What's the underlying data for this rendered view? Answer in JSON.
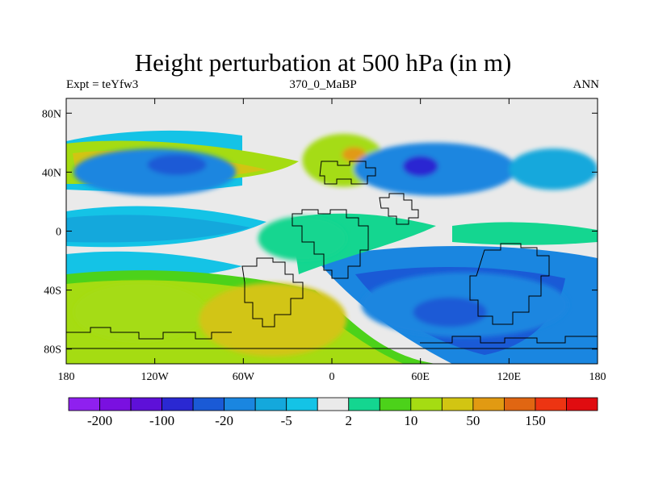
{
  "title": "Height perturbation at 500 hPa (in m)",
  "subtitle_left": "Expt = teYfw3",
  "subtitle_center": "370_0_MaBP",
  "subtitle_right": "ANN",
  "chart_data": {
    "type": "heatmap",
    "variable": "geopotential height perturbation, 500 hPa",
    "units": "m",
    "xlim": [
      -180,
      180
    ],
    "ylim": [
      -90,
      90
    ],
    "x_ticks": [
      {
        "value": -180,
        "label": "180"
      },
      {
        "value": -120,
        "label": "120W"
      },
      {
        "value": -60,
        "label": "60W"
      },
      {
        "value": 0,
        "label": "0"
      },
      {
        "value": 60,
        "label": "60E"
      },
      {
        "value": 120,
        "label": "120E"
      },
      {
        "value": 180,
        "label": "180"
      }
    ],
    "y_ticks": [
      {
        "value": 80,
        "label": "80N"
      },
      {
        "value": 40,
        "label": "40N"
      },
      {
        "value": 0,
        "label": "0"
      },
      {
        "value": -40,
        "label": "40S"
      },
      {
        "value": -80,
        "label": "80S"
      }
    ],
    "colorbar": {
      "colors": [
        "#8f20ef",
        "#7a10e0",
        "#5e10d8",
        "#2a28d2",
        "#1a5ad6",
        "#1a86e0",
        "#14a8dc",
        "#14c3e6",
        "#eaeaea",
        "#14d690",
        "#4cd21a",
        "#a5dc12",
        "#d2c512",
        "#e19a12",
        "#e06612",
        "#ed3412",
        "#e00c10"
      ],
      "labels": [
        {
          "after_index": 0,
          "text": "-200"
        },
        {
          "after_index": 2,
          "text": "-100"
        },
        {
          "after_index": 4,
          "text": "-20"
        },
        {
          "after_index": 6,
          "text": "-5"
        },
        {
          "after_index": 8,
          "text": "2"
        },
        {
          "after_index": 10,
          "text": "10"
        },
        {
          "after_index": 12,
          "text": "50"
        },
        {
          "after_index": 14,
          "text": "150"
        }
      ]
    },
    "regions": [
      {
        "name": "north-pacific-low",
        "lon": -120,
        "lat": 40,
        "rlon": 55,
        "rlat": 16,
        "level": 5
      },
      {
        "name": "north-pacific-low-core",
        "lon": -105,
        "lat": 45,
        "rlon": 20,
        "rlat": 7,
        "level": 4
      },
      {
        "name": "north-atlantic-high",
        "lon": 8,
        "lat": 48,
        "rlon": 28,
        "rlat": 18,
        "level": 11
      },
      {
        "name": "north-atlantic-high-core",
        "lon": 15,
        "lat": 52,
        "rlon": 8,
        "rlat": 5,
        "level": 13
      },
      {
        "name": "eurasia-low",
        "lon": 70,
        "lat": 42,
        "rlon": 55,
        "rlat": 18,
        "level": 5
      },
      {
        "name": "eurasia-low-core",
        "lon": 60,
        "lat": 44,
        "rlon": 12,
        "rlat": 7,
        "level": 3
      },
      {
        "name": "north-pacific-west-low",
        "lon": 150,
        "lat": 42,
        "rlon": 30,
        "rlat": 14,
        "level": 6
      },
      {
        "name": "south-pacific-high",
        "lon": -130,
        "lat": -55,
        "rlon": 45,
        "rlat": 20,
        "level": 11
      },
      {
        "name": "south-atlantic-high",
        "lon": -40,
        "lat": -60,
        "rlon": 50,
        "rlat": 25,
        "level": 12
      },
      {
        "name": "south-indian-low",
        "lon": 90,
        "lat": -50,
        "rlon": 70,
        "rlat": 22,
        "level": 5
      },
      {
        "name": "south-indian-low-core",
        "lon": 80,
        "lat": -55,
        "rlon": 25,
        "rlat": 10,
        "level": 4
      },
      {
        "name": "tropical-plus",
        "lon": -20,
        "lat": -5,
        "rlon": 30,
        "rlat": 15,
        "level": 9
      }
    ]
  }
}
